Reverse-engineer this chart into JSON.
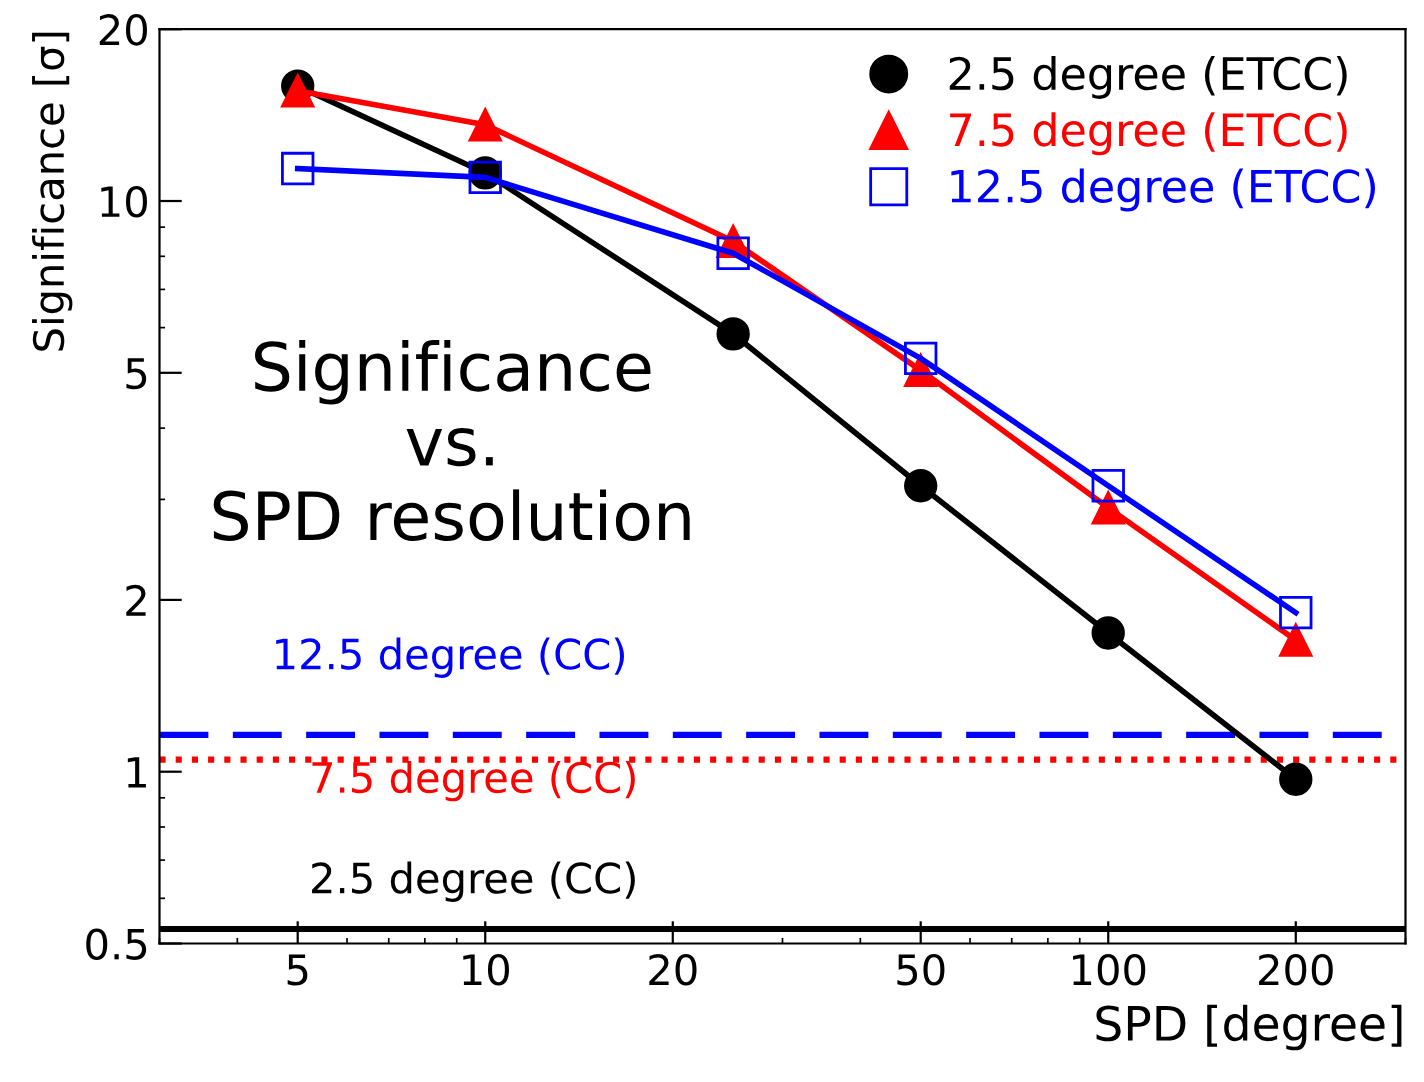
{
  "chart_data": {
    "type": "line",
    "xlabel": "SPD [degree]",
    "ylabel": "Significance [σ]",
    "log": "xy",
    "x": [
      5,
      10,
      25,
      50,
      100,
      200
    ],
    "xlim": [
      3,
      300
    ],
    "ylim": [
      0.5,
      20
    ],
    "xticks": [
      5,
      10,
      20,
      50,
      100,
      200
    ],
    "yticks": [
      0.5,
      1,
      2,
      5,
      10,
      20
    ],
    "grid": false,
    "legend": "top right",
    "series": [
      {
        "name": "2.5 degree (ETCC)",
        "color": "#000000",
        "marker": "circle",
        "values": [
          15.9,
          11.2,
          5.85,
          3.17,
          1.75,
          0.97
        ]
      },
      {
        "name": "7.5 degree (ETCC)",
        "color": "#ff0000",
        "marker": "triangle",
        "values": [
          15.6,
          13.6,
          8.5,
          5.05,
          2.9,
          1.7
        ]
      },
      {
        "name": "12.5 degree (ETCC)",
        "color": "#0000ff",
        "marker": "square",
        "values": [
          11.4,
          11.0,
          8.1,
          5.3,
          3.17,
          1.9
        ]
      }
    ],
    "ref_lines": [
      {
        "axis": "y",
        "value": 1.16,
        "label": "12.5 degree (CC)",
        "color": "#0000ff",
        "line_style": "dashed"
      },
      {
        "axis": "y",
        "value": 1.05,
        "label": "7.5 degree (CC)",
        "color": "#ff0000",
        "line_style": "dotted"
      },
      {
        "axis": "y",
        "value": 0.53,
        "label": "2.5 degree (CC)",
        "color": "#000000",
        "line_style": "solid"
      }
    ],
    "annotations": [
      "Significance\nvs.\nSPD resolution"
    ]
  }
}
